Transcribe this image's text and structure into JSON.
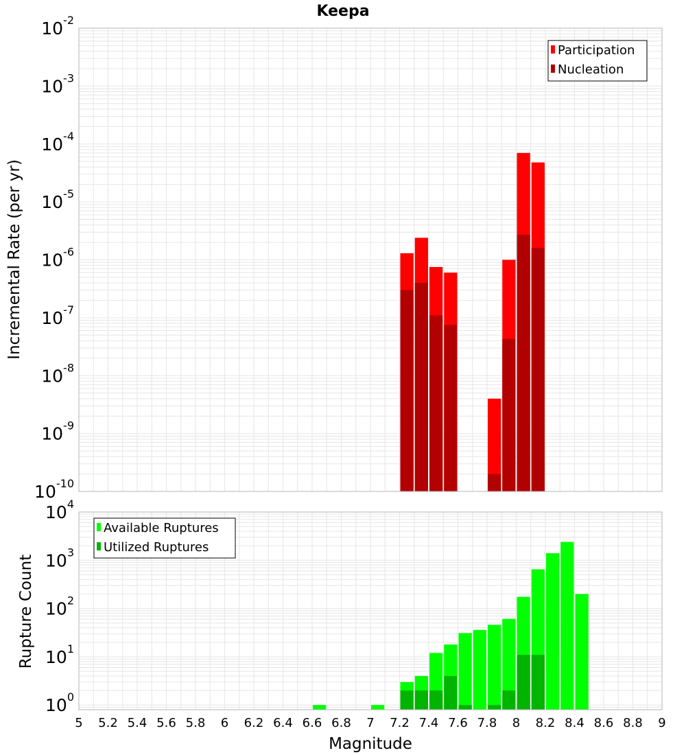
{
  "chart_data": [
    {
      "type": "bar",
      "title": "Keepa",
      "xlabel": "",
      "ylabel": "Incremental Rate (per yr)",
      "xlim": [
        5,
        9
      ],
      "ylim": [
        1e-10,
        0.01
      ],
      "yscale": "log",
      "grid": true,
      "legend_position": "top-right",
      "bin_width": 0.1,
      "x": [
        7.25,
        7.35,
        7.45,
        7.55,
        7.85,
        7.95,
        8.05,
        8.15
      ],
      "series": [
        {
          "name": "Participation",
          "color": "#ff0000",
          "values": [
            1.3e-06,
            2.4e-06,
            7.5e-07,
            6e-07,
            4e-09,
            1e-06,
            7e-05,
            4.8e-05
          ]
        },
        {
          "name": "Nucleation",
          "color": "#b20000",
          "values": [
            3e-07,
            4e-07,
            1.1e-07,
            7.5e-08,
            2e-10,
            4.3e-08,
            2.7e-06,
            1.6e-06
          ]
        }
      ]
    },
    {
      "type": "bar",
      "title": "",
      "xlabel": "Magnitude",
      "ylabel": "Rupture Count",
      "xlim": [
        5,
        9
      ],
      "ylim": [
        0.8,
        10000
      ],
      "yscale": "log",
      "grid": true,
      "legend_position": "top-left",
      "bin_width": 0.1,
      "x": [
        6.65,
        7.05,
        7.25,
        7.35,
        7.45,
        7.55,
        7.65,
        7.75,
        7.85,
        7.95,
        8.05,
        8.15,
        8.25,
        8.35,
        8.45
      ],
      "series": [
        {
          "name": "Available Ruptures",
          "color": "#00ff00",
          "values": [
            1,
            1,
            3,
            4,
            12,
            18,
            31,
            36,
            46,
            61,
            175,
            650,
            1400,
            2400,
            200
          ]
        },
        {
          "name": "Utilized Ruptures",
          "color": "#00b400",
          "values": [
            null,
            null,
            2,
            2,
            2,
            4,
            1,
            null,
            1,
            2,
            11,
            11,
            null,
            null,
            null
          ]
        }
      ]
    }
  ],
  "x_ticks": [
    "5",
    "5.2",
    "5.4",
    "5.6",
    "5.8",
    "6",
    "6.2",
    "6.4",
    "6.6",
    "6.8",
    "7",
    "7.2",
    "7.4",
    "7.6",
    "7.8",
    "8",
    "8.2",
    "8.4",
    "8.6",
    "8.8",
    "9"
  ],
  "top_y_ticks": [
    {
      "base": "10",
      "exp": "-2"
    },
    {
      "base": "10",
      "exp": "-3"
    },
    {
      "base": "10",
      "exp": "-4"
    },
    {
      "base": "10",
      "exp": "-5"
    },
    {
      "base": "10",
      "exp": "-6"
    },
    {
      "base": "10",
      "exp": "-7"
    },
    {
      "base": "10",
      "exp": "-8"
    },
    {
      "base": "10",
      "exp": "-9"
    },
    {
      "base": "10",
      "exp": "-10"
    }
  ],
  "bottom_y_ticks": [
    {
      "base": "10",
      "exp": "4"
    },
    {
      "base": "10",
      "exp": "3"
    },
    {
      "base": "10",
      "exp": "2"
    },
    {
      "base": "10",
      "exp": "1"
    },
    {
      "base": "10",
      "exp": "0"
    }
  ],
  "colors": {
    "grid": "#e6e6e6",
    "frame": "#b4b4b4",
    "participation": "#ff0000",
    "nucleation": "#b20000",
    "available": "#00ff00",
    "utilized": "#00b400"
  }
}
